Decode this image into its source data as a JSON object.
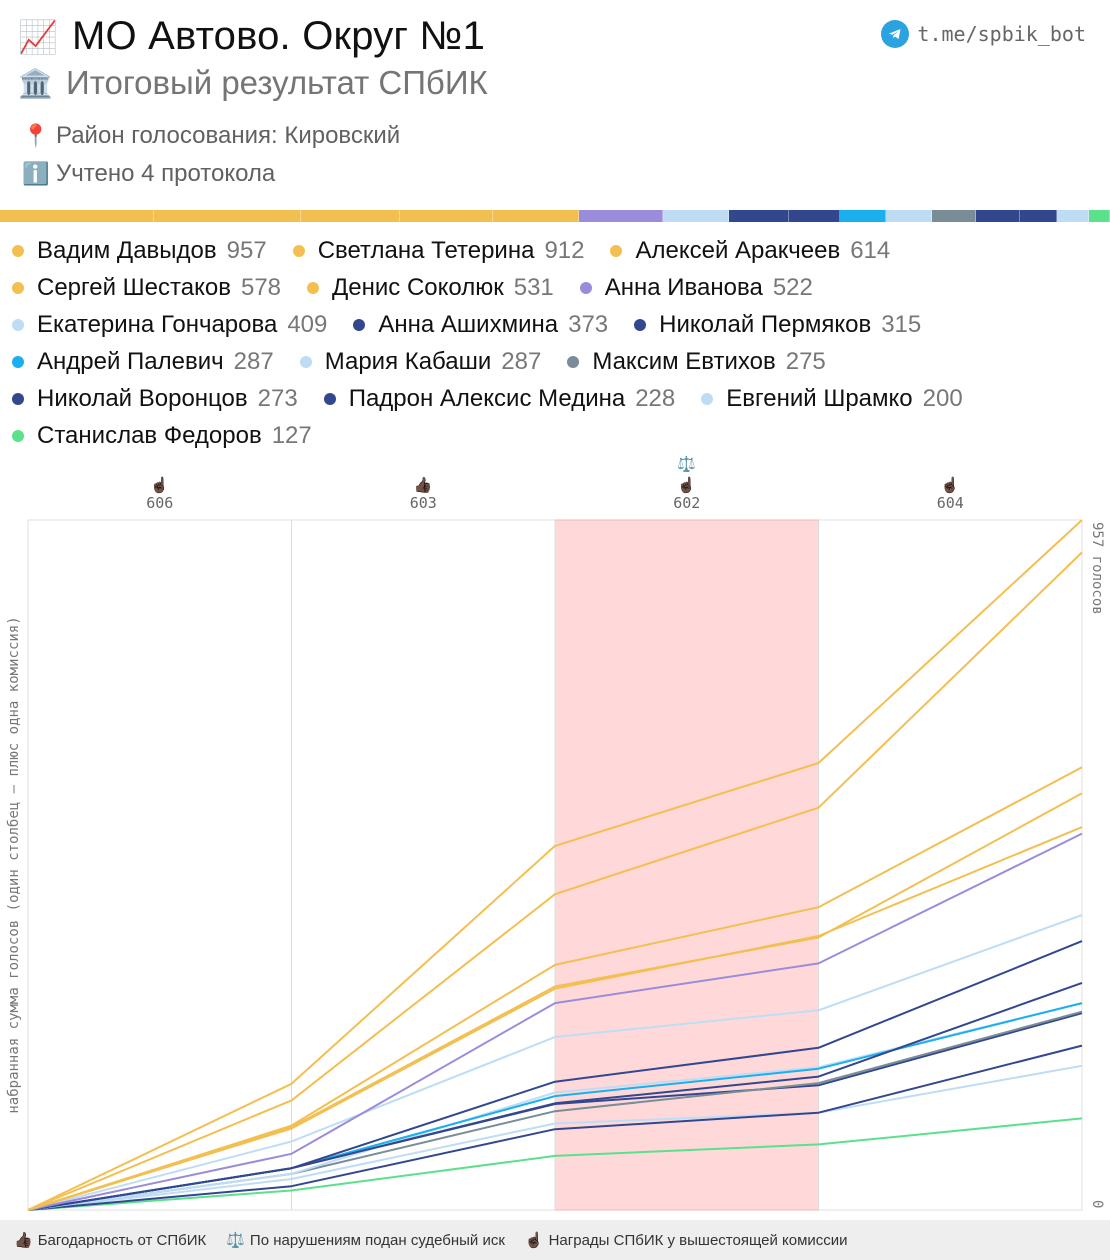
{
  "header": {
    "title_icon": "📈",
    "title": "МО Автово. Округ №1",
    "subtitle_icon": "🏛️",
    "subtitle": "Итоговый результат СПбИК",
    "district_icon": "📍",
    "district": "Район голосования: Кировский",
    "protocols_icon": "ℹ️",
    "protocols": "Учтено 4 протокола",
    "telegram_icon": "telegram-icon",
    "telegram_handle": "t.me/spbik_bot"
  },
  "colors": {
    "yellow": "#F3BF51",
    "purple": "#9B8CDB",
    "light_blue": "#BEDDF5",
    "navy": "#33478F",
    "cyan": "#1AB0F0",
    "gray": "#7A8C98",
    "green": "#5BE08C",
    "highlight": "#FFD9D9"
  },
  "chart_data": {
    "type": "line",
    "y_axis_label": "набранная сумма голосов (один столбец — плюс одна комиссия)",
    "y_top_label": "957 голосов",
    "y_bottom_label": "0",
    "ylim": [
      0,
      957
    ],
    "columns": [
      {
        "label": "606",
        "icon": "☝🏿",
        "extra_icon": ""
      },
      {
        "label": "603",
        "icon": "👍🏿",
        "extra_icon": ""
      },
      {
        "label": "602",
        "icon": "☝🏿",
        "extra_icon": "⚖️"
      },
      {
        "label": "604",
        "icon": "☝🏿",
        "extra_icon": ""
      }
    ],
    "highlighted_column": 2,
    "series": [
      {
        "name": "Вадим Давыдов",
        "total": 957,
        "color": "#F3BF51",
        "cumulative": [
          0,
          175,
          505,
          620,
          957
        ]
      },
      {
        "name": "Светлана Тетерина",
        "total": 912,
        "color": "#F3BF51",
        "cumulative": [
          0,
          152,
          438,
          558,
          912
        ]
      },
      {
        "name": "Алексей Аракчеев",
        "total": 614,
        "color": "#F3BF51",
        "cumulative": [
          0,
          117,
          340,
          420,
          614
        ]
      },
      {
        "name": "Сергей Шестаков",
        "total": 578,
        "color": "#F3BF51",
        "cumulative": [
          0,
          115,
          310,
          378,
          578
        ]
      },
      {
        "name": "Денис Соколюк",
        "total": 531,
        "color": "#F3BF51",
        "cumulative": [
          0,
          113,
          307,
          380,
          531
        ]
      },
      {
        "name": "Анна Иванова",
        "total": 522,
        "color": "#9B8CDB",
        "cumulative": [
          0,
          78,
          287,
          342,
          522
        ]
      },
      {
        "name": "Екатерина Гончарова",
        "total": 409,
        "color": "#BEDDF5",
        "cumulative": [
          0,
          95,
          240,
          277,
          409
        ]
      },
      {
        "name": "Анна Ашихмина",
        "total": 373,
        "color": "#33478F",
        "cumulative": [
          0,
          58,
          178,
          225,
          373
        ]
      },
      {
        "name": "Николай Пермяков",
        "total": 315,
        "color": "#33478F",
        "cumulative": [
          0,
          58,
          148,
          185,
          315
        ]
      },
      {
        "name": "Андрей Палевич",
        "total": 287,
        "color": "#1AB0F0",
        "cumulative": [
          0,
          58,
          158,
          196,
          287
        ]
      },
      {
        "name": "Мария Кабаши",
        "total": 287,
        "color": "#BEDDF5",
        "cumulative": [
          0,
          50,
          163,
          198,
          287
        ]
      },
      {
        "name": "Максим Евтихов",
        "total": 275,
        "color": "#7A8C98",
        "cumulative": [
          0,
          50,
          137,
          176,
          275
        ]
      },
      {
        "name": "Николай Воронцов",
        "total": 273,
        "color": "#33478F",
        "cumulative": [
          0,
          58,
          147,
          173,
          273
        ]
      },
      {
        "name": "Падрон Алексис Медина",
        "total": 228,
        "color": "#33478F",
        "cumulative": [
          0,
          33,
          112,
          135,
          228
        ]
      },
      {
        "name": "Евгений Шрамко",
        "total": 200,
        "color": "#BEDDF5",
        "cumulative": [
          0,
          43,
          120,
          135,
          200
        ]
      },
      {
        "name": "Станислав Федоров",
        "total": 127,
        "color": "#5BE08C",
        "cumulative": [
          0,
          27,
          75,
          91,
          127
        ]
      }
    ]
  },
  "footer": {
    "items": [
      {
        "icon": "👍🏿",
        "label": "Багодарность от СПбИК"
      },
      {
        "icon": "⚖️",
        "label": "По нарушениям подан судебный иск"
      },
      {
        "icon": "☝🏿",
        "label": "Награды СПбИК у вышестоящей комиссии"
      }
    ]
  }
}
